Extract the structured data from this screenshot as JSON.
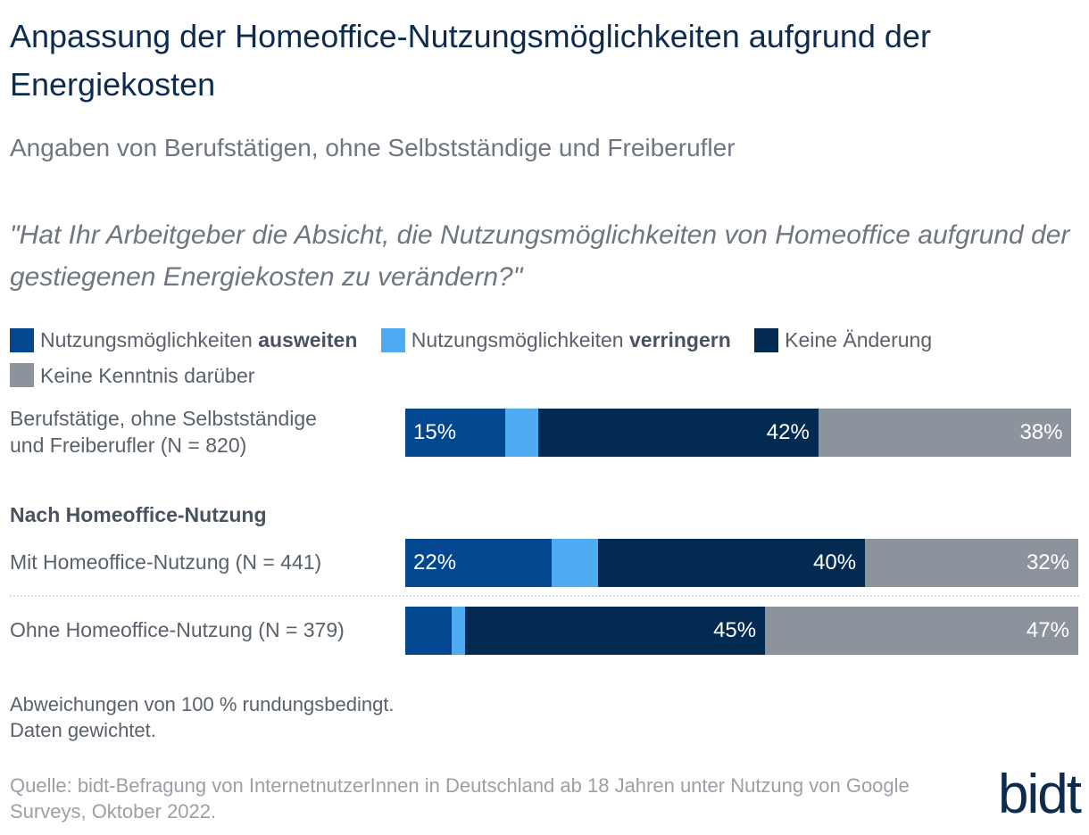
{
  "title": "Anpassung der Homeoffice-Nutzungsmöglichkeiten aufgrund der Energiekosten",
  "subtitle": "Angaben von Berufstätigen, ohne Selbstständige und Freiberufler",
  "question": "\"Hat Ihr Arbeitgeber die Absicht, die Nutzungsmöglichkeiten von Homeoffice aufgrund der gestiegenen Energiekosten zu verändern?\"",
  "legend": [
    {
      "prefix": "Nutzungsmöglichkeiten ",
      "bold": "ausweiten",
      "color": "#02478f"
    },
    {
      "prefix": "Nutzungsmöglichkeiten ",
      "bold": "verringern",
      "color": "#4fabf2"
    },
    {
      "prefix": "Keine Änderung",
      "bold": "",
      "color": "#032b52"
    },
    {
      "prefix": "Keine Kenntnis darüber",
      "bold": "",
      "color": "#8c939d"
    }
  ],
  "rows": [
    {
      "label_line1": "Berufstätige, ohne Selbstständige",
      "label_line2": "und Freiberufler (N = 820)"
    },
    {
      "label": "Mit Homeoffice-Nutzung (N = 441)"
    },
    {
      "label": "Ohne Homeoffice-Nutzung (N = 379)"
    }
  ],
  "group_heading": "Nach Homeoffice-Nutzung",
  "notes": {
    "line1": "Abweichungen von 100 % rundungsbedingt.",
    "line2": "Daten gewichtet."
  },
  "source": "Quelle: bidt-Befragung von InternetnutzerInnen in Deutschland ab 18 Jahren unter Nutzung von Google Surveys, Oktober 2022.",
  "logo": "bidt",
  "chart_data": {
    "type": "bar",
    "orientation": "horizontal",
    "stacked": true,
    "categories": [
      "Berufstätige, ohne Selbstständige und Freiberufler (N = 820)",
      "Mit Homeoffice-Nutzung (N = 441)",
      "Ohne Homeoffice-Nutzung (N = 379)"
    ],
    "series": [
      {
        "name": "Nutzungsmöglichkeiten ausweiten",
        "color": "#02478f",
        "values": [
          15,
          22,
          7
        ],
        "labels": [
          "15%",
          "22%",
          ""
        ]
      },
      {
        "name": "Nutzungsmöglichkeiten verringern",
        "color": "#4fabf2",
        "values": [
          5,
          7,
          2
        ],
        "labels": [
          "",
          "",
          ""
        ]
      },
      {
        "name": "Keine Änderung",
        "color": "#032b52",
        "values": [
          42,
          40,
          45
        ],
        "labels": [
          "42%",
          "40%",
          "45%"
        ]
      },
      {
        "name": "Keine Kenntnis darüber",
        "color": "#8c939d",
        "values": [
          38,
          32,
          47
        ],
        "labels": [
          "38%",
          "32%",
          "47%"
        ]
      }
    ],
    "xlim": [
      0,
      101
    ],
    "grid": false,
    "legend_position": "top"
  }
}
